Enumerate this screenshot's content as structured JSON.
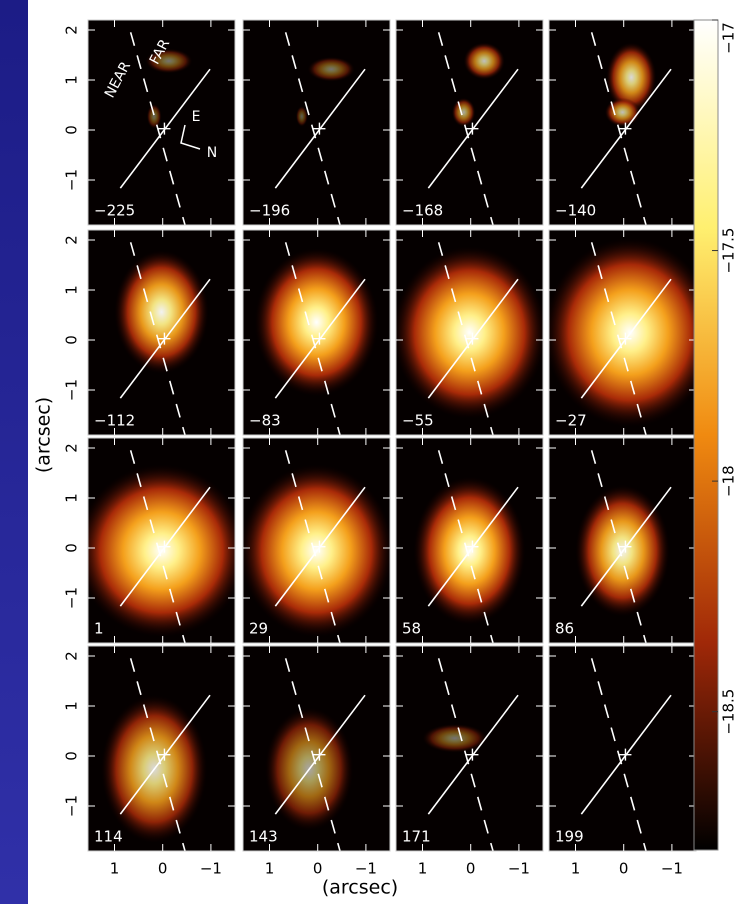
{
  "chart_data": {
    "type": "channel-map",
    "x_label": "(arcsec)",
    "y_label": "(arcsec)",
    "xlim": [
      1.55,
      -1.5
    ],
    "ylim": [
      -1.9,
      2.2
    ],
    "xticks": [
      1,
      0,
      {
        "value": -1,
        "label": "−1"
      }
    ],
    "yticks": [
      {
        "value": -1,
        "label": "−1"
      },
      0,
      1,
      2
    ],
    "panels": [
      "−225",
      "−196",
      "−168",
      "−140",
      "−112",
      "−83",
      "−55",
      "−27",
      "1",
      "29",
      "58",
      "86",
      "114",
      "143",
      "171",
      "199"
    ],
    "annotations": [
      "FAR",
      "NEAR",
      "E",
      "N"
    ],
    "colorbar": {
      "clim": [
        -18.8,
        -17
      ],
      "ticks": [
        {
          "value": -17,
          "label": "−17"
        },
        {
          "value": -17.5,
          "label": "−17.5"
        },
        {
          "value": -18,
          "label": "−18"
        },
        {
          "value": -18.5,
          "label": "−18.5"
        }
      ]
    }
  }
}
